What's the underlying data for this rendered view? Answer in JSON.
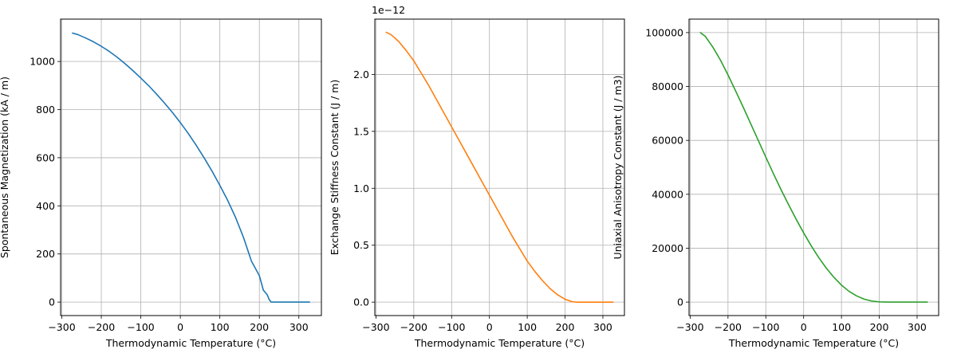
{
  "chart_data": [
    {
      "type": "line",
      "xlabel": "Thermodynamic Temperature (°C)",
      "ylabel": "Spontaneous Magnetization (kA / m)",
      "offset_text": "",
      "color": "#1f77b4",
      "xlim": [
        -303,
        357
      ],
      "ylim": [
        -56,
        1176
      ],
      "xticks": [
        -300,
        -200,
        -100,
        0,
        100,
        200,
        300
      ],
      "xtick_labels": [
        "−300",
        "−200",
        "−100",
        "0",
        "100",
        "200",
        "300"
      ],
      "yticks": [
        0,
        200,
        400,
        600,
        800,
        1000
      ],
      "ytick_labels": [
        "0",
        "200",
        "400",
        "600",
        "800",
        "1000"
      ],
      "grid": true,
      "series": [
        {
          "name": "Spontaneous Magnetization",
          "x": [
            -273,
            -260,
            -240,
            -220,
            -200,
            -180,
            -160,
            -140,
            -120,
            -100,
            -80,
            -60,
            -40,
            -20,
            0,
            20,
            40,
            60,
            80,
            100,
            120,
            140,
            160,
            180,
            200,
            210,
            220,
            225,
            230,
            233,
            235,
            240,
            260,
            280,
            300,
            320,
            327
          ],
          "y": [
            1118,
            1112,
            1098,
            1082,
            1063,
            1042,
            1018,
            991,
            962,
            931,
            899,
            864,
            827,
            788,
            746,
            701,
            652,
            600,
            545,
            485,
            422,
            351,
            268,
            170,
            110,
            50,
            30,
            10,
            0,
            0,
            0,
            0,
            0,
            0,
            0,
            0,
            0
          ]
        }
      ]
    },
    {
      "type": "line",
      "xlabel": "Thermodynamic Temperature (°C)",
      "ylabel": "Exchange Stiffness Constant (J / m)",
      "offset_text": "1e−12",
      "color": "#ff7f0e",
      "xlim": [
        -303,
        357
      ],
      "ylim": [
        -0.118,
        2.486
      ],
      "xticks": [
        -300,
        -200,
        -100,
        0,
        100,
        200,
        300
      ],
      "xtick_labels": [
        "−300",
        "−200",
        "−100",
        "0",
        "100",
        "200",
        "300"
      ],
      "yticks": [
        0,
        0.5,
        1.0,
        1.5,
        2.0
      ],
      "ytick_labels": [
        "0.0",
        "0.5",
        "1.0",
        "1.5",
        "2.0"
      ],
      "grid": true,
      "series": [
        {
          "name": "Exchange Stiffness Constant",
          "x": [
            -273,
            -260,
            -240,
            -220,
            -200,
            -180,
            -160,
            -140,
            -120,
            -100,
            -80,
            -60,
            -40,
            -20,
            0,
            20,
            40,
            60,
            80,
            100,
            120,
            140,
            160,
            180,
            200,
            220,
            230,
            240,
            260,
            280,
            300,
            327
          ],
          "y": [
            2.37,
            2.35,
            2.29,
            2.21,
            2.12,
            2.01,
            1.9,
            1.78,
            1.66,
            1.54,
            1.42,
            1.3,
            1.18,
            1.06,
            0.94,
            0.82,
            0.7,
            0.58,
            0.47,
            0.36,
            0.27,
            0.19,
            0.12,
            0.065,
            0.025,
            0.003,
            0,
            0,
            0,
            0,
            0,
            0
          ]
        }
      ]
    },
    {
      "type": "line",
      "xlabel": "Thermodynamic Temperature (°C)",
      "ylabel": "Uniaxial Anisotropy Constant (J / m3)",
      "offset_text": "",
      "color": "#2ca02c",
      "xlim": [
        -303,
        357
      ],
      "ylim": [
        -5000,
        105000
      ],
      "xticks": [
        -300,
        -200,
        -100,
        0,
        100,
        200,
        300
      ],
      "xtick_labels": [
        "−300",
        "−200",
        "−100",
        "0",
        "100",
        "200",
        "300"
      ],
      "yticks": [
        0,
        20000,
        40000,
        60000,
        80000,
        100000
      ],
      "ytick_labels": [
        "0",
        "20000",
        "40000",
        "60000",
        "80000",
        "100000"
      ],
      "grid": true,
      "series": [
        {
          "name": "Uniaxial Anisotropy Constant",
          "x": [
            -273,
            -260,
            -240,
            -220,
            -200,
            -180,
            -160,
            -140,
            -120,
            -100,
            -80,
            -60,
            -40,
            -20,
            0,
            20,
            40,
            60,
            80,
            100,
            120,
            140,
            160,
            180,
            200,
            220,
            230,
            240,
            260,
            280,
            300,
            327
          ],
          "y": [
            100000,
            98600,
            94600,
            89800,
            84300,
            78400,
            72400,
            66200,
            60000,
            53800,
            47700,
            41800,
            36200,
            30800,
            25700,
            20900,
            16500,
            12600,
            9200,
            6300,
            4000,
            2300,
            1100,
            400,
            80,
            0,
            0,
            0,
            0,
            0,
            0,
            0
          ]
        }
      ]
    }
  ]
}
